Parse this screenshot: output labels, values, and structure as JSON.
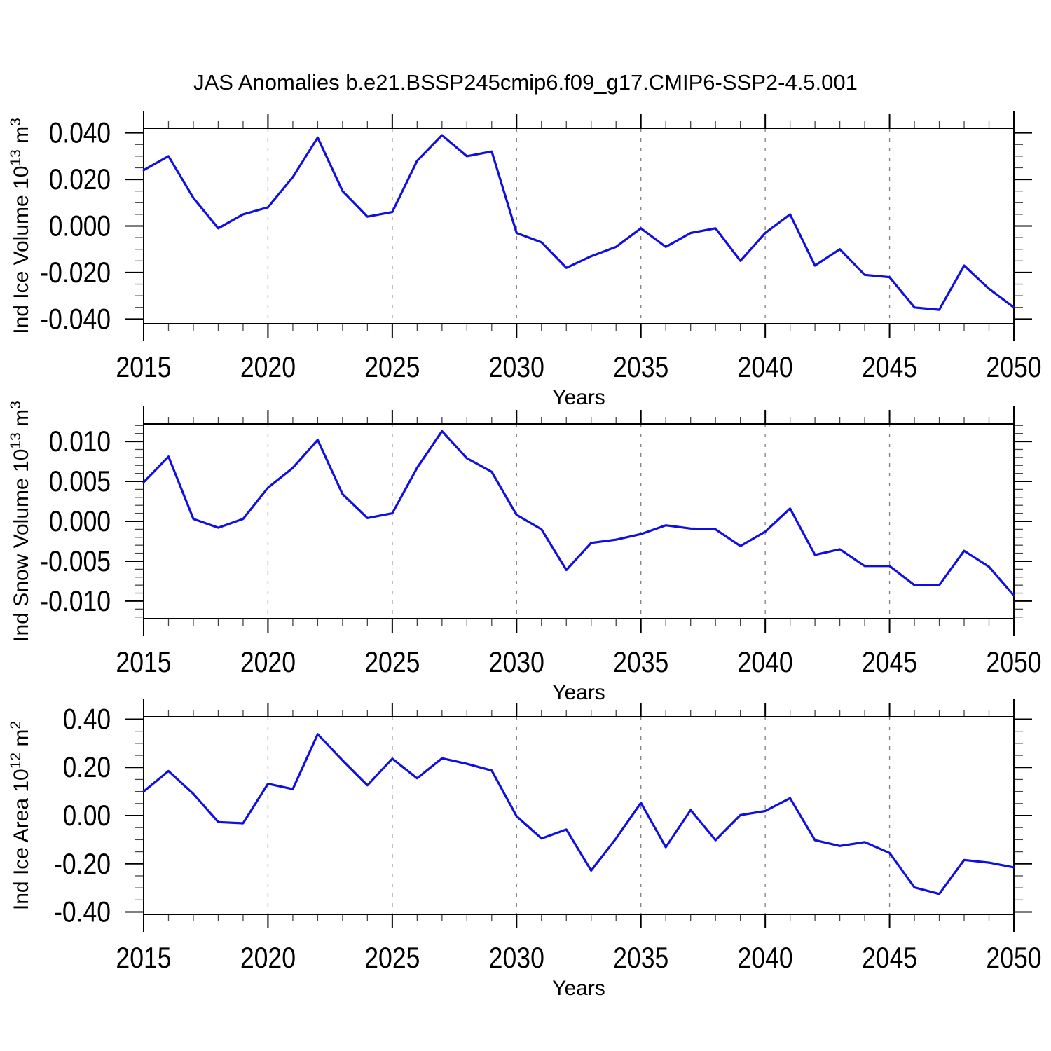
{
  "title": "JAS Anomalies b.e21.BSSP245cmip6.f09_g17.CMIP6-SSP2-4.5.001",
  "style": {
    "series_color": "#0f0fe0",
    "grid_color": "#808080",
    "axis_color": "#000000",
    "minor_tick_color": "#444444",
    "background_color": "#ffffff",
    "text_color": "#000000"
  },
  "x_axis": {
    "label": "Years",
    "range": [
      2015,
      2050
    ],
    "major_step": 5,
    "minor_step": 1,
    "major_tick_labels": [
      "2015",
      "2020",
      "2025",
      "2030",
      "2035",
      "2040",
      "2045",
      "2050"
    ],
    "grid_years": [
      2020,
      2025,
      2030,
      2035,
      2040,
      2045
    ]
  },
  "years": [
    2015,
    2016,
    2017,
    2018,
    2019,
    2020,
    2021,
    2022,
    2023,
    2024,
    2025,
    2026,
    2027,
    2028,
    2029,
    2030,
    2031,
    2032,
    2033,
    2034,
    2035,
    2036,
    2037,
    2038,
    2039,
    2040,
    2041,
    2042,
    2043,
    2044,
    2045,
    2046,
    2047,
    2048,
    2049,
    2050
  ],
  "chart_data": [
    {
      "type": "line",
      "name": "ind-ice-volume",
      "title": "",
      "xlabel": "Years",
      "ylabel": "Ind Ice Volume 10^13 m^3",
      "ylabel_parts": {
        "prefix": "Ind Ice Volume 10",
        "sup1": "13",
        "mid": " m",
        "sup2": "3"
      },
      "ylim": [
        -0.042,
        0.042
      ],
      "ytick_values": [
        0.04,
        0.02,
        0.0,
        -0.02,
        -0.04
      ],
      "ytick_labels": [
        "0.040",
        "0.020",
        "0.000",
        "-0.020",
        "-0.040"
      ],
      "minor_step": 0.005,
      "grid": "x-dashed",
      "legend": "none",
      "values": [
        0.024,
        0.03,
        0.012,
        -0.001,
        0.005,
        0.008,
        0.021,
        0.038,
        0.015,
        0.004,
        0.006,
        0.028,
        0.039,
        0.03,
        0.032,
        -0.003,
        -0.007,
        -0.018,
        -0.013,
        -0.009,
        -0.001,
        -0.009,
        -0.003,
        -0.001,
        -0.015,
        -0.003,
        0.005,
        -0.017,
        -0.01,
        -0.021,
        -0.022,
        -0.035,
        -0.036,
        -0.017,
        -0.027,
        -0.035
      ]
    },
    {
      "type": "line",
      "name": "ind-snow-volume",
      "title": "",
      "xlabel": "Years",
      "ylabel": "Ind Snow Volume 10^13 m^3",
      "ylabel_parts": {
        "prefix": "Ind Snow Volume 10",
        "sup1": "13",
        "mid": " m",
        "sup2": "3"
      },
      "ylim": [
        -0.0122,
        0.0122
      ],
      "ytick_values": [
        0.01,
        0.005,
        0.0,
        -0.005,
        -0.01
      ],
      "ytick_labels": [
        "0.010",
        "0.005",
        "0.000",
        "-0.005",
        "-0.010"
      ],
      "minor_step": 0.001,
      "grid": "x-dashed",
      "legend": "none",
      "values": [
        0.0049,
        0.0081,
        0.0003,
        -0.0008,
        0.0003,
        0.0042,
        0.0067,
        0.0102,
        0.0034,
        0.0004,
        0.001,
        0.0067,
        0.0113,
        0.0079,
        0.0062,
        0.0008,
        -0.001,
        -0.0061,
        -0.0027,
        -0.0023,
        -0.0016,
        -0.0005,
        -0.0009,
        -0.001,
        -0.0031,
        -0.0013,
        0.0016,
        -0.0042,
        -0.0035,
        -0.0056,
        -0.0056,
        -0.008,
        -0.008,
        -0.0037,
        -0.0057,
        -0.0093
      ]
    },
    {
      "type": "line",
      "name": "ind-ice-area",
      "title": "",
      "xlabel": "Years",
      "ylabel": "Ind Ice Area 10^12 m^2",
      "ylabel_parts": {
        "prefix": "Ind Ice Area 10",
        "sup1": "12",
        "mid": " m",
        "sup2": "2"
      },
      "ylim": [
        -0.41,
        0.41
      ],
      "ytick_values": [
        0.4,
        0.2,
        0.0,
        -0.2,
        -0.4
      ],
      "ytick_labels": [
        "0.40",
        "0.20",
        "0.00",
        "-0.20",
        "-0.40"
      ],
      "minor_step": 0.05,
      "grid": "x-dashed",
      "legend": "none",
      "values": [
        0.1,
        0.185,
        0.09,
        -0.027,
        -0.032,
        0.132,
        0.11,
        0.338,
        0.229,
        0.126,
        0.236,
        0.155,
        0.238,
        0.215,
        0.187,
        -0.003,
        -0.095,
        -0.058,
        -0.228,
        -0.095,
        0.053,
        -0.131,
        0.023,
        -0.102,
        0.002,
        0.019,
        0.072,
        -0.102,
        -0.126,
        -0.11,
        -0.155,
        -0.298,
        -0.325,
        -0.184,
        -0.195,
        -0.215
      ]
    }
  ]
}
